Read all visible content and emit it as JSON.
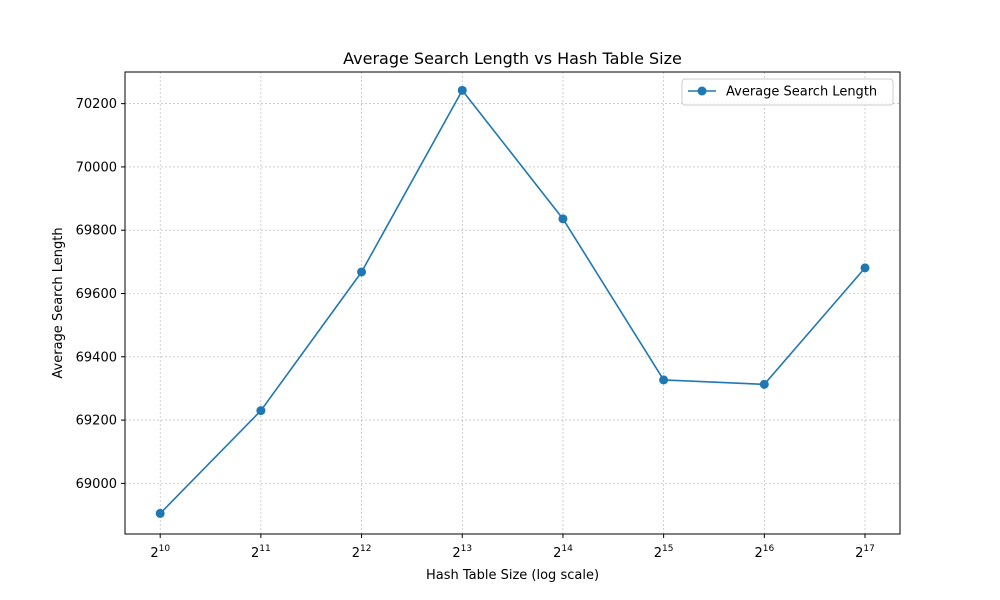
{
  "chart_data": {
    "type": "line",
    "title": "Average Search Length vs Hash Table Size",
    "xlabel": "Hash Table Size (log scale)",
    "ylabel": "Average Search Length",
    "x_scale": "log2",
    "x_tick_labels": [
      {
        "base": "2",
        "exp": "10"
      },
      {
        "base": "2",
        "exp": "11"
      },
      {
        "base": "2",
        "exp": "12"
      },
      {
        "base": "2",
        "exp": "13"
      },
      {
        "base": "2",
        "exp": "14"
      },
      {
        "base": "2",
        "exp": "15"
      },
      {
        "base": "2",
        "exp": "16"
      },
      {
        "base": "2",
        "exp": "17"
      }
    ],
    "x": [
      1024,
      2048,
      4096,
      8192,
      16384,
      32768,
      65536,
      131072
    ],
    "y_ticks": [
      "69000",
      "69200",
      "69400",
      "69600",
      "69800",
      "70000",
      "70200"
    ],
    "ylim": [
      68840,
      70300
    ],
    "series": [
      {
        "name": "Average Search Length",
        "values": [
          68905,
          69230,
          69668,
          70242,
          69836,
          69327,
          69313,
          69681
        ],
        "color": "#1f77b4",
        "marker": "circle"
      }
    ],
    "grid": true,
    "legend_position": "upper right"
  }
}
